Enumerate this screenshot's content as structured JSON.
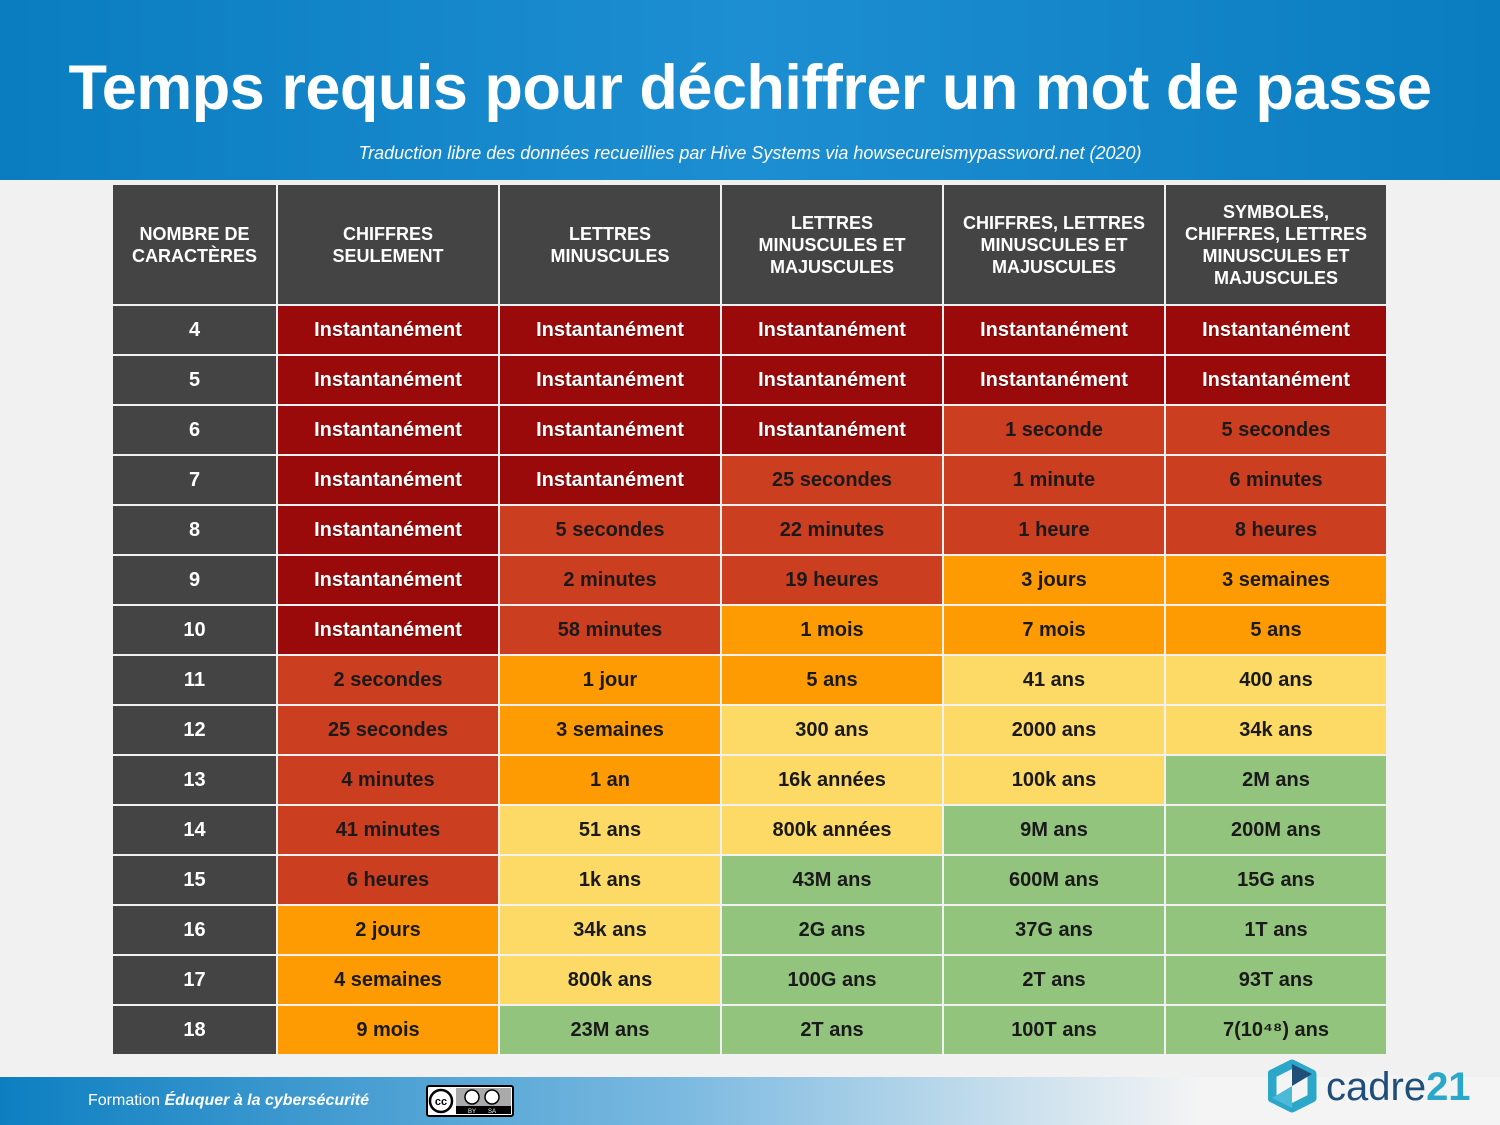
{
  "header": {
    "title": "Temps requis pour déchiffrer un mot de passe",
    "subtitle": "Traduction libre des données recueillies par Hive Systems via howsecureismypassword.net (2020)"
  },
  "table": {
    "headers": [
      "NOMBRE DE CARACTÈRES",
      "CHIFFRES SEULEMENT",
      "LETTRES MINUSCULES",
      "LETTRES MINUSCULES ET MAJUSCULES",
      "CHIFFRES, LETTRES MINUSCULES ET MAJUSCULES",
      "SYMBOLES, CHIFFRES, LETTRES MINUSCULES ET MAJUSCULES"
    ],
    "rows": [
      [
        4,
        "Instantanément",
        "Instantanément",
        "Instantanément",
        "Instantanément",
        "Instantanément"
      ],
      [
        5,
        "Instantanément",
        "Instantanément",
        "Instantanément",
        "Instantanément",
        "Instantanément"
      ],
      [
        6,
        "Instantanément",
        "Instantanément",
        "Instantanément",
        "1 seconde",
        "5 secondes"
      ],
      [
        7,
        "Instantanément",
        "Instantanément",
        "25 secondes",
        "1 minute",
        "6 minutes"
      ],
      [
        8,
        "Instantanément",
        "5 secondes",
        "22 minutes",
        "1 heure",
        "8 heures"
      ],
      [
        9,
        "Instantanément",
        "2 minutes",
        "19 heures",
        "3 jours",
        "3 semaines"
      ],
      [
        10,
        "Instantanément",
        "58 minutes",
        "1 mois",
        "7 mois",
        "5 ans"
      ],
      [
        11,
        "2 secondes",
        "1 jour",
        "5 ans",
        "41 ans",
        "400 ans"
      ],
      [
        12,
        "25 secondes",
        "3 semaines",
        "300 ans",
        "2000 ans",
        "34k ans"
      ],
      [
        13,
        "4 minutes",
        "1 an",
        "16k années",
        "100k ans",
        "2M ans"
      ],
      [
        14,
        "41 minutes",
        "51 ans",
        "800k années",
        "9M ans",
        "200M ans"
      ],
      [
        15,
        "6 heures",
        "1k ans",
        "43M ans",
        "600M ans",
        "15G ans"
      ],
      [
        16,
        "2 jours",
        "34k ans",
        "2G ans",
        "37G ans",
        "1T ans"
      ],
      [
        17,
        "4 semaines",
        "800k ans",
        "100G ans",
        "2T ans",
        "93T ans"
      ],
      [
        18,
        "9 mois",
        "23M ans",
        "2T ans",
        "100T ans",
        "7(10⁴⁸) ans"
      ]
    ],
    "cell_colors": [
      [
        "#9a0a0a",
        "#9a0a0a",
        "#9a0a0a",
        "#9a0a0a",
        "#9a0a0a"
      ],
      [
        "#9a0a0a",
        "#9a0a0a",
        "#9a0a0a",
        "#9a0a0a",
        "#9a0a0a"
      ],
      [
        "#9a0a0a",
        "#9a0a0a",
        "#9a0a0a",
        "#cc3e20",
        "#cc3e20"
      ],
      [
        "#9a0a0a",
        "#9a0a0a",
        "#cc3e20",
        "#cc3e20",
        "#cc3e20"
      ],
      [
        "#9a0a0a",
        "#cc3e20",
        "#cc3e20",
        "#cc3e20",
        "#cc3e20"
      ],
      [
        "#9a0a0a",
        "#cc3e20",
        "#cc3e20",
        "#fe9a02",
        "#fe9a02"
      ],
      [
        "#9a0a0a",
        "#cc3e20",
        "#fe9a02",
        "#fe9a02",
        "#fe9a02"
      ],
      [
        "#cc3e20",
        "#fe9a02",
        "#fe9a02",
        "#fdd966",
        "#fdd966"
      ],
      [
        "#cc3e20",
        "#fe9a02",
        "#fdd966",
        "#fdd966",
        "#fdd966"
      ],
      [
        "#cc3e20",
        "#fe9a02",
        "#fdd966",
        "#fdd966",
        "#93c47d"
      ],
      [
        "#cc3e20",
        "#fdd966",
        "#fdd966",
        "#93c47d",
        "#93c47d"
      ],
      [
        "#cc3e20",
        "#fdd966",
        "#93c47d",
        "#93c47d",
        "#93c47d"
      ],
      [
        "#fe9a02",
        "#fdd966",
        "#93c47d",
        "#93c47d",
        "#93c47d"
      ],
      [
        "#fe9a02",
        "#fdd966",
        "#93c47d",
        "#93c47d",
        "#93c47d"
      ],
      [
        "#fe9a02",
        "#93c47d",
        "#93c47d",
        "#93c47d",
        "#93c47d"
      ]
    ]
  },
  "footer": {
    "label": "Formation",
    "course": "Éduquer à la cybersécurité",
    "license": {
      "icon": "cc",
      "by": "BY",
      "sa": "SA"
    },
    "logo": {
      "name": "cadre",
      "number": "21"
    }
  }
}
